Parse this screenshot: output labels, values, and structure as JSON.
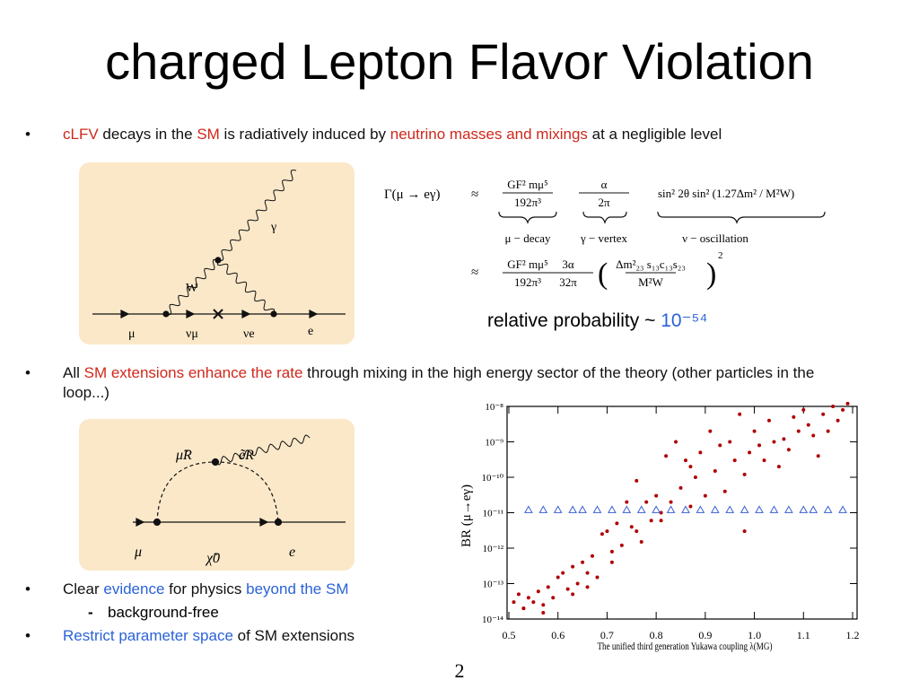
{
  "title": "charged Lepton Flavor Violation",
  "bullets": [
    {
      "segments": [
        {
          "text": "cLFV",
          "color": "#d0281c"
        },
        {
          "text": " decays in the "
        },
        {
          "text": "SM",
          "color": "#d0281c"
        },
        {
          "text": " is radiatively induced by "
        },
        {
          "text": "neutrino masses and mixings",
          "color": "#d0281c"
        },
        {
          "text": " at a negligible level"
        }
      ]
    },
    {
      "segments": [
        {
          "text": "All "
        },
        {
          "text": "SM extensions enhance the rate",
          "color": "#d0281c"
        },
        {
          "text": " through mixing in the high energy sector of the theory (other particles in the loop...)"
        }
      ]
    },
    {
      "segments": [
        {
          "text": "Clear "
        },
        {
          "text": "evidence",
          "color": "#2a62d8"
        },
        {
          "text": " for physics "
        },
        {
          "text": "beyond the SM",
          "color": "#2a62d8"
        }
      ],
      "sub": "background-free"
    },
    {
      "segments": [
        {
          "text": "Restrict parameter space",
          "color": "#2a62d8"
        },
        {
          "text": " of SM extensions"
        }
      ]
    }
  ],
  "diagram1": {
    "labels": [
      "μ",
      "νμ",
      "νe",
      "e",
      "W",
      "γ"
    ]
  },
  "diagram2": {
    "labels": [
      "μ̃R",
      "ẽR",
      "μ",
      "χ̃0",
      "e"
    ]
  },
  "formula": {
    "lhs": "Γ(μ → eγ)",
    "approx": "≈",
    "line1": [
      {
        "num": "GF² mμ⁵",
        "den": "192π³",
        "brace": "μ − decay"
      },
      {
        "num": "α",
        "den": "2π",
        "brace": "γ − vertex"
      },
      {
        "text": "sin² 2θ sin² (1.27Δm² / M²W)",
        "brace": "ν − oscillation"
      }
    ],
    "line2": [
      {
        "num": "GF² mμ⁵",
        "den": "192π³"
      },
      {
        "num": "3α",
        "den": "32π"
      },
      {
        "num": "Δm²₂₃ s₁₃c₁₃s₂₃",
        "den": "M²W",
        "power": "2"
      }
    ]
  },
  "relative_probability": [
    {
      "text": "relative probability ~ "
    },
    {
      "text": "10⁻⁵⁴",
      "color": "#2a62d8"
    }
  ],
  "plot": {
    "type": "scatter",
    "xlabel": "The unified third generation Yukawa coupling λ(MG)",
    "ylabel": "BR (μ→eγ)",
    "log_y": true,
    "xlim": [
      0.5,
      1.2
    ],
    "ylim": [
      1e-14,
      1e-08
    ],
    "xticks": [
      0.5,
      0.6,
      0.7,
      0.8,
      0.9,
      {
        "value": 1,
        "label": "1.0"
      },
      1.1,
      1.2
    ],
    "yticks": [
      {
        "value": 1e-14,
        "label": "10⁻¹⁴"
      },
      {
        "value": 1e-13,
        "label": "10⁻¹³"
      },
      {
        "value": 1e-12,
        "label": "10⁻¹²"
      },
      {
        "value": 1e-11,
        "label": "10⁻¹¹"
      },
      {
        "value": 1e-10,
        "label": "10⁻¹⁰"
      },
      {
        "value": 1e-09,
        "label": "10⁻⁹"
      },
      {
        "value": 1e-08,
        "label": "10⁻⁸"
      }
    ],
    "series": [
      {
        "color": "#b00000",
        "marker": "dot",
        "x": [
          0.51,
          0.52,
          0.53,
          0.54,
          0.55,
          0.56,
          0.57,
          0.58,
          0.59,
          0.6,
          0.61,
          0.62,
          0.63,
          0.64,
          0.65,
          0.66,
          0.67,
          0.68,
          0.69,
          0.7,
          0.71,
          0.72,
          0.73,
          0.74,
          0.75,
          0.76,
          0.77,
          0.78,
          0.79,
          0.8,
          0.81,
          0.82,
          0.83,
          0.84,
          0.85,
          0.86,
          0.87,
          0.88,
          0.89,
          0.9,
          0.91,
          0.92,
          0.93,
          0.94,
          0.95,
          0.96,
          0.97,
          0.98,
          0.99,
          1.0,
          1.01,
          1.02,
          1.03,
          1.04,
          1.05,
          1.06,
          1.07,
          1.08,
          1.09,
          1.1,
          1.11,
          1.12,
          1.13,
          1.14,
          1.15,
          1.16,
          1.17,
          1.18,
          1.19,
          0.98,
          0.53,
          0.57,
          0.63,
          0.66,
          0.71,
          0.76,
          0.81,
          0.87
        ],
        "values": [
          3e-14,
          5e-14,
          2e-14,
          4e-14,
          3e-14,
          6e-14,
          2.5e-14,
          8e-14,
          4e-14,
          1.5e-13,
          2e-13,
          7e-14,
          3e-13,
          1e-13,
          4e-13,
          2e-13,
          6e-13,
          1.5e-13,
          2.5e-12,
          3e-12,
          8e-13,
          5e-12,
          1.2e-12,
          2e-11,
          4e-12,
          8e-11,
          1.5e-12,
          2e-11,
          6e-12,
          3e-11,
          1e-11,
          4e-10,
          2e-11,
          1e-09,
          5e-11,
          3e-10,
          1.5e-11,
          1e-10,
          5e-10,
          3e-11,
          2e-09,
          1.5e-10,
          8e-10,
          4e-11,
          1e-09,
          3e-10,
          6e-09,
          1.2e-10,
          5e-10,
          2e-09,
          8e-10,
          3e-10,
          4e-09,
          1e-09,
          2e-10,
          1.2e-09,
          6e-10,
          5e-09,
          2e-09,
          8e-09,
          3e-09,
          1.5e-09,
          4e-10,
          6e-09,
          2e-09,
          1e-08,
          4e-09,
          8e-09,
          1.2e-08,
          3e-12,
          2e-14,
          1.5e-14,
          5e-14,
          8e-14,
          4e-13,
          3e-12,
          6e-12,
          2e-10
        ]
      },
      {
        "color": "#3a5fd0",
        "marker": "triangle",
        "x": [
          0.54,
          0.57,
          0.6,
          0.63,
          0.65,
          0.68,
          0.71,
          0.74,
          0.77,
          0.8,
          0.83,
          0.86,
          0.89,
          0.92,
          0.95,
          0.98,
          1.01,
          1.04,
          1.07,
          1.1,
          1.12,
          1.15,
          1.18
        ],
        "values": [
          1.2e-11,
          1.2e-11,
          1.2e-11,
          1.2e-11,
          1.2e-11,
          1.2e-11,
          1.2e-11,
          1.2e-11,
          1.2e-11,
          1.2e-11,
          1.2e-11,
          1.2e-11,
          1.2e-11,
          1.2e-11,
          1.2e-11,
          1.2e-11,
          1.2e-11,
          1.2e-11,
          1.2e-11,
          1.2e-11,
          1.2e-11,
          1.2e-11,
          1.2e-11
        ]
      }
    ]
  },
  "page_number": "2"
}
